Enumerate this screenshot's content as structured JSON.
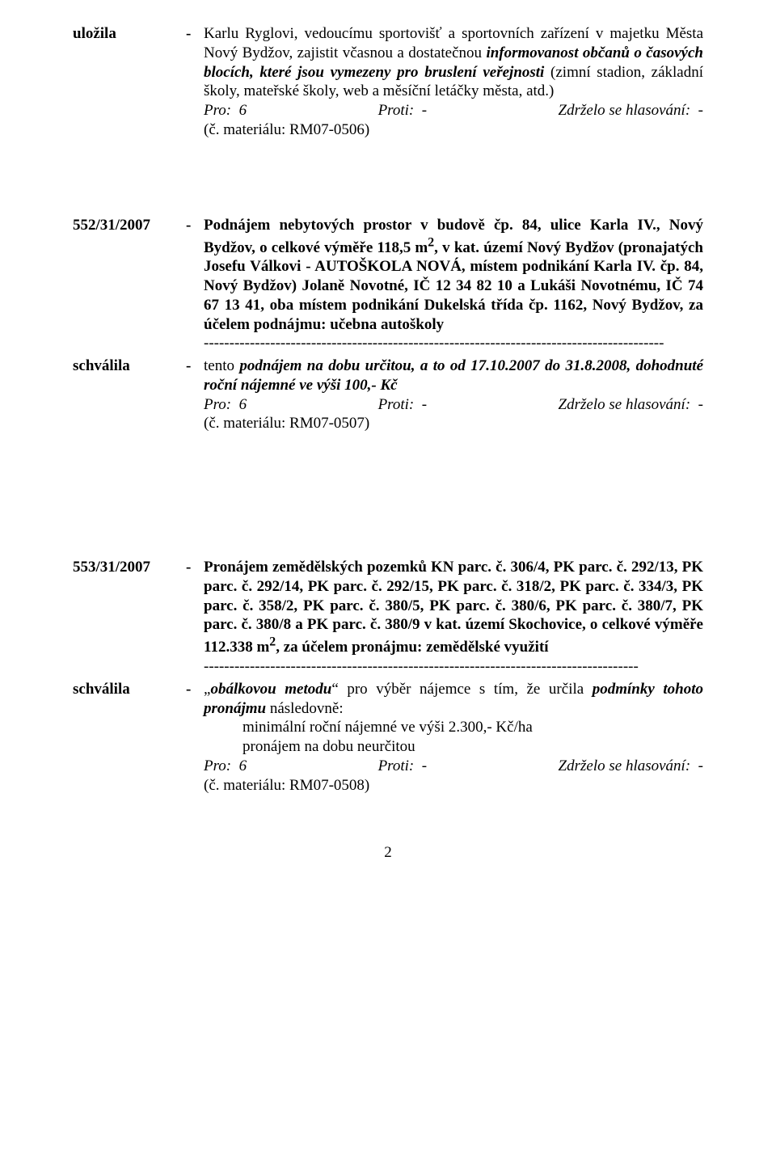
{
  "block1": {
    "label": "uložila",
    "dash": "-",
    "body_pre": "Karlu Ryglovi, vedoucímu sportovišť a sportovních zařízení v majetku Města Nový Bydžov, zajistit včasnou a dostatečnou ",
    "body_em": "informovanost občanů o časových blocích, které jsou vymezeny pro bruslení veřejnosti",
    "body_post": " (zimní stadion, základní školy, mateřské školy, web a měsíční letáčky města, atd.)",
    "vote_pro": "Pro:  6",
    "vote_proti": "Proti:  -",
    "vote_zdr": "Zdrželo se hlasování:  -",
    "mat": "(č. materiálu: RM07-0506)"
  },
  "block2": {
    "label": "552/31/2007",
    "dash": "-",
    "body": "Podnájem nebytových prostor v budově čp. 84, ulice Karla IV., Nový Bydžov, o celkové výměře 118,5 m",
    "sup": "2",
    "body2": ", v kat. území Nový Bydžov (pronajatých Josefu Válkovi - AUTOŠKOLA NOVÁ, místem podnikání Karla IV. čp. 84, Nový Bydžov) Jolaně Novotné, IČ 12 34 82 10 a Lukáši Novotnému, IČ 74 67 13 41, oba místem podnikání Dukelská třída čp. 1162, Nový Bydžov, za účelem podnájmu: učebna autoškoly",
    "dashes": "------------------------------------------------------------------------------------------"
  },
  "block3": {
    "label": "schválila",
    "dash": "-",
    "pre": "tento ",
    "em": "podnájem na dobu určitou, a to od 17.10.2007 do 31.8.2008, dohodnuté roční nájemné ve výši 100,- Kč",
    "vote_pro": "Pro:  6",
    "vote_proti": "Proti:  -",
    "vote_zdr": "Zdrželo se hlasování:  -",
    "mat": "(č. materiálu: RM07-0507)"
  },
  "block4": {
    "label": "553/31/2007",
    "dash": "-",
    "body": "Pronájem zemědělských pozemků KN parc. č. 306/4, PK parc. č. 292/13, PK parc. č. 292/14, PK parc. č. 292/15, PK parc. č. 318/2, PK parc. č. 334/3, PK parc. č. 358/2, PK parc. č. 380/5, PK parc. č. 380/6, PK parc. č. 380/7, PK parc. č. 380/8 a PK parc. č. 380/9 v kat. území Skochovice, o celkové výměře 112.338 m",
    "sup": "2",
    "body2": ", za účelem pronájmu: zemědělské využití",
    "dashes": "-------------------------------------------------------------------------------------"
  },
  "block5": {
    "label": "schválila",
    "dash": "-",
    "pre1": "„",
    "em1": "obálkovou metodu",
    "mid": "“ pro výběr nájemce s tím, že určila ",
    "em2": "podmínky tohoto pronájmu",
    "post": " následovně:",
    "sub1": "minimální roční nájemné ve výši 2.300,- Kč/ha",
    "sub2": "pronájem na dobu neurčitou",
    "vote_pro": "Pro:  6",
    "vote_proti": "Proti:  -",
    "vote_zdr": "Zdrželo se hlasování:  -",
    "mat": "(č. materiálu: RM07-0508)"
  },
  "pagenum": "2"
}
